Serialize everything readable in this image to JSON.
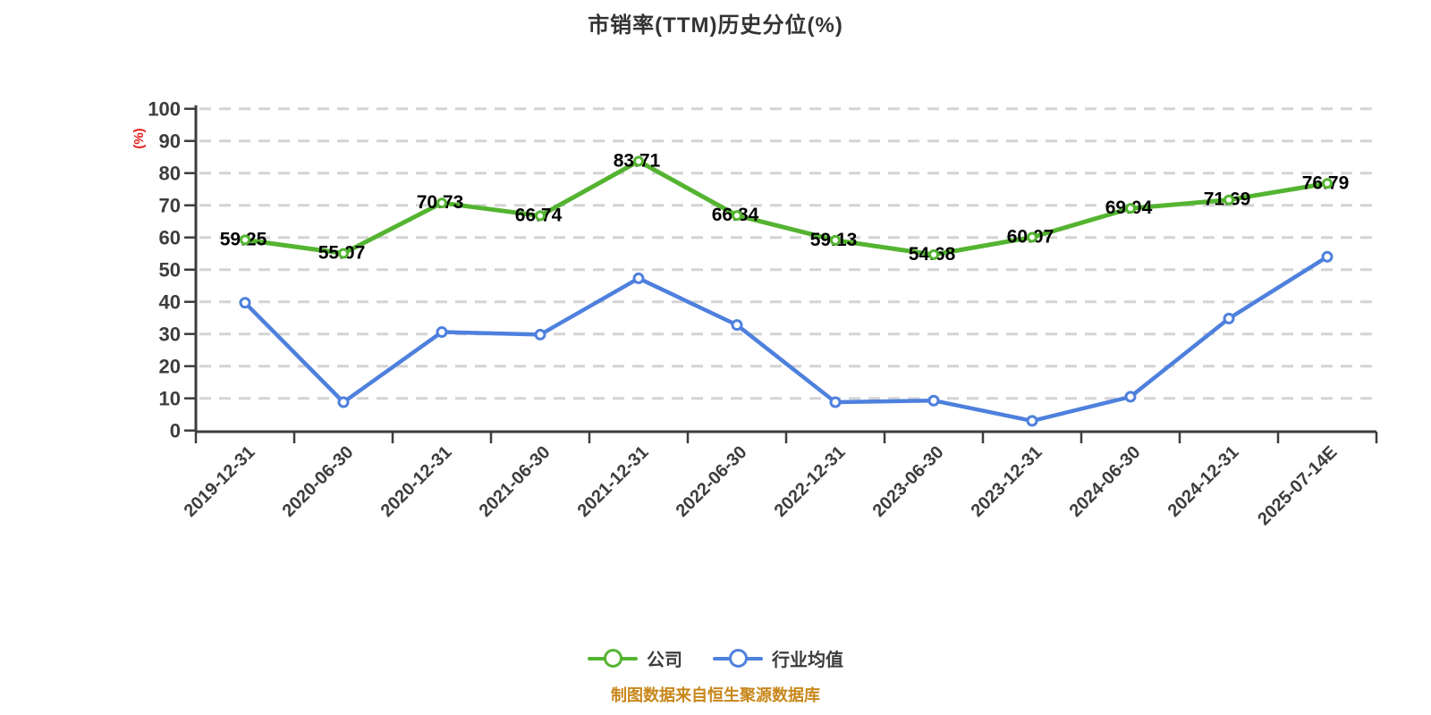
{
  "page": {
    "title": "市销率(TTM)历史分位(%)",
    "source_note": "制图数据来自恒生聚源数据库"
  },
  "legend": {
    "items": [
      {
        "label": "公司",
        "color": "#54b431"
      },
      {
        "label": "行业均值",
        "color": "#4e80dd"
      }
    ]
  },
  "colors": {
    "background": "#ffffff",
    "title": "#333333",
    "axis": "#3d3d3d",
    "grid": "#d4d4d4",
    "tick_label": "#3d3d3d",
    "data_label": "#000000",
    "ylabel": "#e0201c",
    "source_note": "#c8871a",
    "marker_fill": "#ffffff"
  },
  "chart_data": {
    "type": "line",
    "title": "市销率(TTM)历史分位(%)",
    "xlabel": "",
    "ylabel": "(%)",
    "ylim": [
      0,
      100
    ],
    "ytick_step": 10,
    "grid": true,
    "grid_style": "dashed",
    "legend_position": "bottom",
    "categories": [
      "2019-12-31",
      "2020-06-30",
      "2020-12-31",
      "2021-06-30",
      "2021-12-31",
      "2022-06-30",
      "2022-12-31",
      "2023-06-30",
      "2023-12-31",
      "2024-06-30",
      "2024-12-31",
      "2025-07-14E"
    ],
    "series": [
      {
        "name": "公司",
        "color": "#54b431",
        "show_labels": true,
        "values": [
          59.25,
          55.07,
          70.73,
          66.74,
          83.71,
          66.84,
          59.13,
          54.68,
          60.07,
          69.04,
          71.69,
          76.79
        ],
        "labels": [
          "59.25",
          "55.07",
          "70.73",
          "66.74",
          "83.71",
          "66.84",
          "59.13",
          "54.68",
          "60.07",
          "69.04",
          "71.69",
          "76.79"
        ]
      },
      {
        "name": "行业均值",
        "color": "#4e80dd",
        "show_labels": false,
        "values_estimated": true,
        "values": [
          39.7,
          8.8,
          30.6,
          29.8,
          47.3,
          32.8,
          8.8,
          9.3,
          3.0,
          10.5,
          34.8,
          54.0
        ]
      }
    ]
  }
}
